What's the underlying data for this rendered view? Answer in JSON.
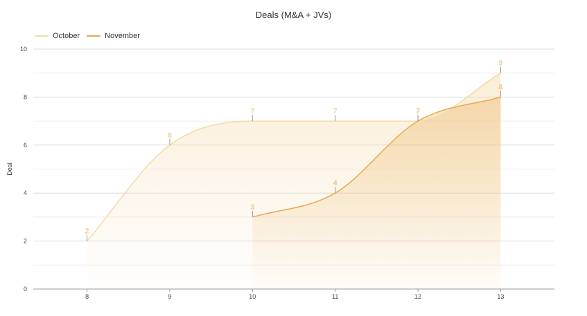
{
  "chart_data": {
    "type": "area",
    "title": "Deals (M&A + JVs)",
    "xlabel": "",
    "ylabel": "Deal",
    "x": [
      8,
      9,
      10,
      11,
      12,
      13
    ],
    "ylim": [
      0,
      10
    ],
    "yticks": [
      0,
      2,
      4,
      6,
      8,
      10
    ],
    "grid": true,
    "legend_position": "top-left",
    "series": [
      {
        "name": "October",
        "color": "#f6d9a8",
        "x": [
          8,
          9,
          10,
          11,
          12,
          13
        ],
        "values": [
          2,
          6,
          7,
          7,
          7,
          9
        ]
      },
      {
        "name": "November",
        "color": "#e8a94c",
        "x": [
          10,
          11,
          12,
          13
        ],
        "values": [
          3,
          4,
          7,
          8
        ]
      }
    ]
  }
}
